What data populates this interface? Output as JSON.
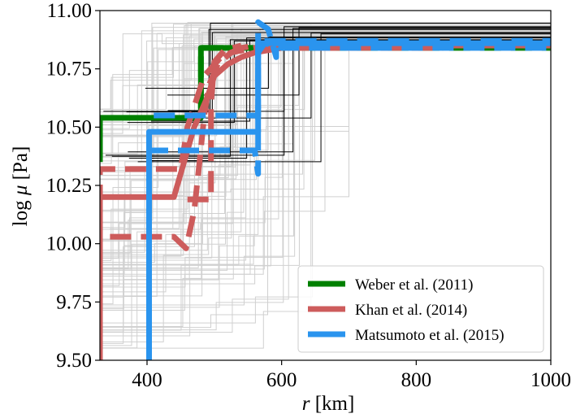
{
  "chart_data": {
    "type": "line",
    "xlabel": {
      "italic": "r",
      "rest": " [km]"
    },
    "ylabel": {
      "pre": "log ",
      "italic": "μ",
      "rest": " [Pa]"
    },
    "xlim": [
      330,
      1000
    ],
    "ylim": [
      9.5,
      11.0
    ],
    "xticks": [
      400,
      600,
      800,
      1000
    ],
    "xtick_labels": [
      "400",
      "600",
      "800",
      "1000"
    ],
    "yticks": [
      9.5,
      9.75,
      10.0,
      10.25,
      10.5,
      10.75,
      11.0
    ],
    "ytick_labels": [
      "9.50",
      "9.75",
      "10.00",
      "10.25",
      "10.50",
      "10.75",
      "11.00"
    ],
    "grid": false,
    "legend_position": "lower-right",
    "colors": {
      "weber": "#008000",
      "khan": "#cd5c5c",
      "matsumoto": "#2a94ee",
      "ensemble_gray": "#d0d0d0",
      "ensemble_black": "#000000"
    },
    "series": [
      {
        "name": "Weber et al. (2011)",
        "color": "#008000",
        "solid": [
          [
            330,
            10.35
          ],
          [
            330,
            10.54
          ],
          [
            480,
            10.54
          ],
          [
            480,
            10.84
          ],
          [
            570,
            10.84
          ],
          [
            570,
            10.85
          ],
          [
            1000,
            10.85
          ]
        ],
        "dashed": [
          [
            480,
            10.58
          ],
          [
            480,
            10.84
          ],
          [
            1000,
            10.84
          ]
        ]
      },
      {
        "name": "Khan et al. (2014)",
        "color": "#cd5c5c",
        "solid": [
          [
            330,
            9.5
          ],
          [
            330,
            10.2
          ],
          [
            440,
            10.2
          ],
          [
            470,
            10.5
          ],
          [
            490,
            10.63
          ],
          [
            500,
            10.72
          ],
          [
            520,
            10.77
          ],
          [
            540,
            10.8
          ],
          [
            560,
            10.82
          ],
          [
            600,
            10.84
          ],
          [
            650,
            10.85
          ],
          [
            1000,
            10.85
          ]
        ],
        "dashed": [
          [
            330,
            9.5
          ],
          [
            330,
            10.32
          ],
          [
            450,
            10.32
          ],
          [
            460,
            10.5
          ],
          [
            485,
            10.72
          ],
          [
            510,
            10.8
          ],
          [
            540,
            10.84
          ],
          [
            580,
            10.86
          ],
          [
            620,
            10.84
          ],
          [
            840,
            10.84
          ]
        ],
        "dashed2": [
          [
            345,
            10.03
          ],
          [
            440,
            10.03
          ],
          [
            458,
            9.98
          ],
          [
            470,
            10.14
          ],
          [
            478,
            10.35
          ],
          [
            485,
            10.55
          ],
          [
            492,
            10.68
          ],
          [
            505,
            10.77
          ],
          [
            525,
            10.82
          ],
          [
            560,
            10.84
          ],
          [
            700,
            10.84
          ]
        ],
        "dashed3": [
          [
            460,
            10.19
          ],
          [
            495,
            10.19
          ],
          [
            495,
            10.6
          ],
          [
            500,
            10.78
          ],
          [
            515,
            10.83
          ],
          [
            540,
            10.85
          ]
        ]
      },
      {
        "name": "Matsumoto et al. (2015)",
        "color": "#2a94ee",
        "solid": [
          [
            403,
            9.5
          ],
          [
            403,
            10.48
          ],
          [
            565,
            10.48
          ],
          [
            565,
            10.86
          ],
          [
            1000,
            10.86
          ]
        ],
        "dashed": [
          [
            410,
            10.55
          ],
          [
            520,
            10.55
          ],
          [
            565,
            10.55
          ],
          [
            565,
            10.87
          ],
          [
            1000,
            10.87
          ]
        ],
        "dashed2": [
          [
            400,
            10.4
          ],
          [
            560,
            10.4
          ],
          [
            565,
            10.3
          ],
          [
            565,
            10.82
          ],
          [
            575,
            10.86
          ],
          [
            600,
            10.84
          ],
          [
            1000,
            10.84
          ]
        ],
        "dashed3": [
          [
            565,
            10.68
          ],
          [
            565,
            10.95
          ],
          [
            580,
            10.92
          ],
          [
            592,
            10.8
          ],
          [
            592,
            10.85
          ]
        ]
      }
    ]
  }
}
